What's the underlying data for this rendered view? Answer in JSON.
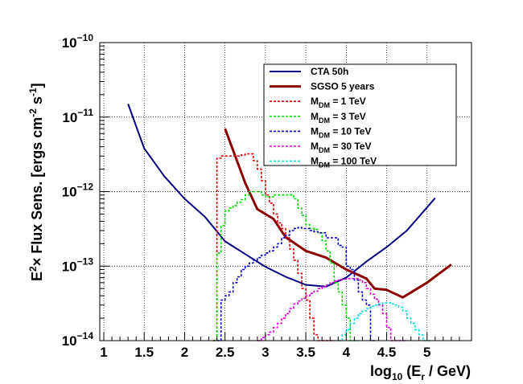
{
  "chart_data": {
    "type": "line",
    "title": "",
    "xlabel": "log10 (Er / GeV)",
    "ylabel": "E2 × Flux Sens. [ergs cm-2 s-1]",
    "xlim": [
      0.95,
      5.55
    ],
    "ylim": [
      1e-14,
      1e-10
    ],
    "yscale": "log",
    "grid": true,
    "legend_position": "top-right",
    "x_ticks": [
      {
        "value": 1,
        "label": "1"
      },
      {
        "value": 1.5,
        "label": "1.5"
      },
      {
        "value": 2,
        "label": "2"
      },
      {
        "value": 2.5,
        "label": "2.5"
      },
      {
        "value": 3,
        "label": "3"
      },
      {
        "value": 3.5,
        "label": "3.5"
      },
      {
        "value": 4,
        "label": "4"
      },
      {
        "value": 4.5,
        "label": "4.5"
      },
      {
        "value": 5,
        "label": "5"
      }
    ],
    "y_ticks": [
      {
        "value": 1e-14,
        "base": "10",
        "exp": "−14"
      },
      {
        "value": 1e-13,
        "base": "10",
        "exp": "−13"
      },
      {
        "value": 1e-12,
        "base": "10",
        "exp": "−12"
      },
      {
        "value": 1e-11,
        "base": "10",
        "exp": "−11"
      },
      {
        "value": 1e-10,
        "base": "10",
        "exp": "−10"
      }
    ],
    "series": [
      {
        "name": "CTA 50h",
        "label_main": "CTA 50h",
        "label_sub": "",
        "label_rest": "",
        "color": "#000080",
        "style": "solid",
        "width": 2,
        "kind": "line",
        "x": [
          1.3,
          1.5,
          1.75,
          2.0,
          2.25,
          2.5,
          2.75,
          3.0,
          3.25,
          3.5,
          3.75,
          4.0,
          4.25,
          4.5,
          4.75,
          5.1
        ],
        "y": [
          1.5e-11,
          3.8e-12,
          1.6e-12,
          8e-13,
          4.6e-13,
          2.15e-13,
          1.45e-13,
          9.8e-14,
          7.2e-14,
          5.6e-14,
          5.3e-14,
          7e-14,
          1.15e-13,
          1.8e-13,
          3e-13,
          8.2e-13
        ]
      },
      {
        "name": "SGSO 5 years",
        "label_main": "SGSO 5 years",
        "label_sub": "",
        "label_rest": "",
        "color": "#8b0000",
        "style": "solid",
        "width": 3,
        "kind": "line",
        "x": [
          2.5,
          2.75,
          2.9,
          3.1,
          3.25,
          3.5,
          3.75,
          4.0,
          4.25,
          4.35,
          4.5,
          4.7,
          5.0,
          5.3
        ],
        "y": [
          7e-12,
          1.3e-12,
          5.8e-13,
          4.3e-13,
          2.45e-13,
          1.6e-13,
          1.3e-13,
          9e-14,
          6.8e-14,
          5e-14,
          4.8e-14,
          3.8e-14,
          6e-14,
          1.05e-13
        ]
      },
      {
        "name": "MDM = 1 TeV",
        "label_main": "M",
        "label_sub": "DM",
        "label_rest": " = 1 TeV",
        "color": "#dd0000",
        "style": "dashed",
        "width": 1.6,
        "kind": "step",
        "bin_width": 0.05,
        "x": [
          2.35,
          2.4,
          2.45,
          2.5,
          2.55,
          2.6,
          2.65,
          2.7,
          2.75,
          2.8,
          2.85,
          2.9,
          2.95,
          3.0,
          3.05,
          3.1,
          3.15,
          3.2,
          3.25,
          3.3,
          3.35,
          3.4,
          3.45,
          3.5,
          3.55,
          3.6,
          3.65,
          3.7,
          3.75,
          3.8
        ],
        "y": [
          1e-14,
          2.8e-12,
          3e-12,
          3e-12,
          3e-12,
          3e-12,
          3e-12,
          3.1e-12,
          3.2e-12,
          3.2e-12,
          2.6e-12,
          2e-12,
          1.4e-12,
          9e-13,
          7e-13,
          5e-13,
          3.8e-13,
          3.2e-13,
          2.4e-13,
          1.7e-13,
          1.2e-13,
          8e-14,
          5e-14,
          3.5e-14,
          2e-14,
          1.2e-14,
          1e-14,
          1e-14,
          1e-14,
          1e-14
        ]
      },
      {
        "name": "MDM = 3 TeV",
        "label_main": "M",
        "label_sub": "DM",
        "label_rest": " = 3 TeV",
        "color": "#00dd00",
        "style": "dashed",
        "width": 1.6,
        "kind": "step",
        "bin_width": 0.05,
        "x": [
          2.35,
          2.4,
          2.45,
          2.5,
          2.55,
          2.6,
          2.65,
          2.7,
          2.75,
          2.8,
          2.85,
          2.9,
          2.95,
          3.0,
          3.05,
          3.1,
          3.15,
          3.2,
          3.25,
          3.3,
          3.35,
          3.4,
          3.45,
          3.5,
          3.55,
          3.6,
          3.65,
          3.7,
          3.75,
          3.8,
          3.85,
          3.9,
          3.95,
          4.0,
          4.05,
          4.1
        ],
        "y": [
          1e-14,
          1.5e-13,
          3.5e-13,
          5.5e-13,
          6e-13,
          6.5e-13,
          7.2e-13,
          7.8e-13,
          9e-13,
          1e-12,
          1e-12,
          1e-12,
          9e-13,
          8.5e-13,
          8.5e-13,
          9e-13,
          9e-13,
          9e-13,
          9e-13,
          9e-13,
          8e-13,
          6e-13,
          4.8e-13,
          3.6e-13,
          3.2e-13,
          3.1e-13,
          2.8e-13,
          2.2e-13,
          1.6e-13,
          1.1e-13,
          6e-14,
          4.5e-14,
          3e-14,
          2e-14,
          1e-14,
          1e-14
        ]
      },
      {
        "name": "MDM = 10 TeV",
        "label_main": "M",
        "label_sub": "DM",
        "label_rest": " = 10 TeV",
        "color": "#0000cc",
        "style": "dashed",
        "width": 1.6,
        "kind": "step",
        "bin_width": 0.05,
        "x": [
          2.4,
          2.45,
          2.5,
          2.55,
          2.6,
          2.65,
          2.7,
          2.75,
          2.8,
          2.85,
          2.9,
          2.95,
          3.0,
          3.05,
          3.1,
          3.15,
          3.2,
          3.25,
          3.3,
          3.35,
          3.4,
          3.45,
          3.5,
          3.55,
          3.6,
          3.65,
          3.7,
          3.75,
          3.8,
          3.85,
          3.9,
          3.95,
          4.0,
          4.05,
          4.1,
          4.15,
          4.2,
          4.25,
          4.3
        ],
        "y": [
          1e-14,
          3.5e-14,
          4e-14,
          4.5e-14,
          6e-14,
          7.2e-14,
          9e-14,
          1e-13,
          1.1e-13,
          1.2e-13,
          1.3e-13,
          1.4e-13,
          1.5e-13,
          1.6e-13,
          1.8e-13,
          2e-13,
          2.4e-13,
          2.6e-13,
          3e-13,
          3.2e-13,
          3.3e-13,
          3.2e-13,
          3.2e-13,
          3e-13,
          2.9e-13,
          2.8e-13,
          2.8e-13,
          2.4e-13,
          2.4e-13,
          2.4e-13,
          1.9e-13,
          1.8e-13,
          1e-13,
          9e-14,
          6.5e-14,
          4.5e-14,
          3.5e-14,
          3e-14,
          1e-14
        ]
      },
      {
        "name": "MDM = 30 TeV",
        "label_main": "M",
        "label_sub": "DM",
        "label_rest": " = 30 TeV",
        "color": "#dd00dd",
        "style": "dashed",
        "width": 1.6,
        "kind": "step",
        "bin_width": 0.05,
        "x": [
          2.9,
          2.95,
          3.0,
          3.05,
          3.1,
          3.15,
          3.2,
          3.25,
          3.3,
          3.35,
          3.4,
          3.45,
          3.5,
          3.55,
          3.6,
          3.65,
          3.7,
          3.75,
          3.8,
          3.85,
          3.9,
          3.95,
          4.0,
          4.05,
          4.1,
          4.15,
          4.2,
          4.25,
          4.3,
          4.35,
          4.4,
          4.45,
          4.5,
          4.55,
          4.6,
          4.65,
          4.7
        ],
        "y": [
          1e-14,
          1.1e-14,
          1.2e-14,
          1.3e-14,
          1.5e-14,
          1.7e-14,
          2e-14,
          2.3e-14,
          2.7e-14,
          3.1e-14,
          3.4e-14,
          3.7e-14,
          4e-14,
          4.3e-14,
          4.6e-14,
          5e-14,
          5.3e-14,
          5.6e-14,
          6e-14,
          6.3e-14,
          6.5e-14,
          6.7e-14,
          6.8e-14,
          6.8e-14,
          6.8e-14,
          6.5e-14,
          6e-14,
          5e-14,
          4.2e-14,
          3.6e-14,
          3e-14,
          2.3e-14,
          1.5e-14,
          1e-14,
          1e-14,
          1e-14,
          1e-14
        ]
      },
      {
        "name": "MDM = 100 TeV",
        "label_main": "M",
        "label_sub": "DM",
        "label_rest": " = 100 TeV",
        "color": "#00dddd",
        "style": "dashed",
        "width": 1.6,
        "kind": "step",
        "bin_width": 0.05,
        "x": [
          3.9,
          3.95,
          4.0,
          4.05,
          4.1,
          4.15,
          4.2,
          4.25,
          4.3,
          4.35,
          4.4,
          4.45,
          4.5,
          4.55,
          4.6,
          4.65,
          4.7,
          4.75,
          4.8,
          4.85,
          4.9,
          4.95,
          5.0
        ],
        "y": [
          1e-14,
          1.2e-14,
          1.4e-14,
          1.7e-14,
          2e-14,
          2.3e-14,
          2.5e-14,
          2.7e-14,
          2.9e-14,
          3e-14,
          3.1e-14,
          3.2e-14,
          3.2e-14,
          3.1e-14,
          3e-14,
          2.8e-14,
          2.5e-14,
          2e-14,
          1.7e-14,
          1.4e-14,
          1.2e-14,
          1e-14,
          1e-14
        ]
      }
    ]
  },
  "labels": {
    "xlabel_main": "log",
    "xlabel_sub": "10",
    "xlabel_mid": " (E",
    "xlabel_sub2": "r",
    "xlabel_end": " / GeV)",
    "ylabel_e": "E",
    "ylabel_sup": "2",
    "ylabel_mid": "× Flux Sens. [ergs cm",
    "ylabel_sup2": "-2",
    "ylabel_s": " s",
    "ylabel_sup3": "-1",
    "ylabel_end": "]"
  }
}
